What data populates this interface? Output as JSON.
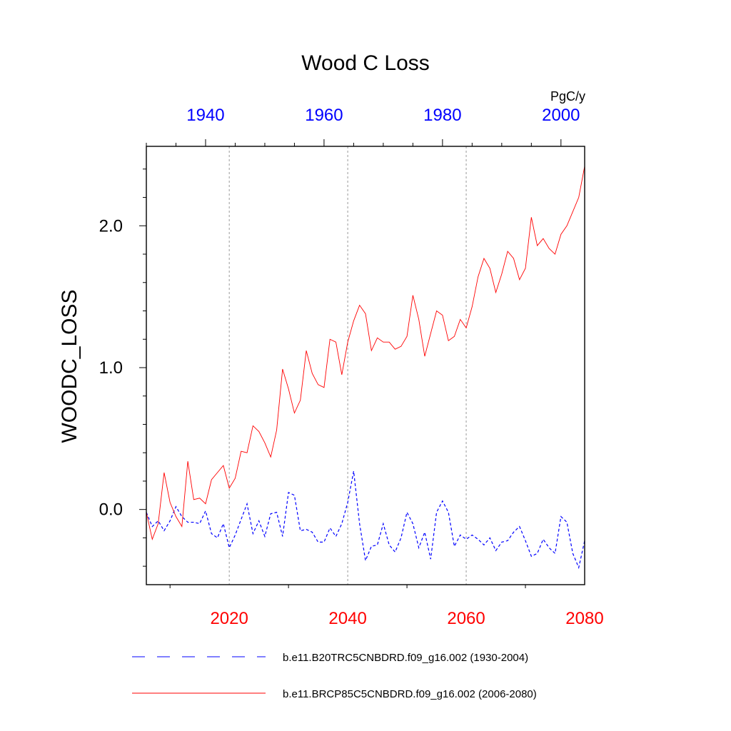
{
  "chart_data": {
    "type": "line",
    "title": "Wood C Loss",
    "ylabel": "WOODC_LOSS",
    "units": "PgC/y",
    "ylim": [
      -0.53,
      2.56
    ],
    "yticks": [
      0.0,
      1.0,
      2.0
    ],
    "ytick_labels": [
      "0.0",
      "1.0",
      "2.0"
    ],
    "bottom_axis": {
      "range": [
        2006,
        2080
      ],
      "ticks": [
        2020,
        2040,
        2060,
        2080
      ],
      "labels": [
        "2020",
        "2040",
        "2060",
        "2080"
      ],
      "color": "#ff0000"
    },
    "top_axis": {
      "range": [
        1930,
        2004
      ],
      "ticks": [
        1940,
        1960,
        1980,
        2000
      ],
      "labels": [
        "1940",
        "1960",
        "1980",
        "2000"
      ],
      "color": "#0000ff"
    },
    "grid_x": [
      2020,
      2040,
      2060
    ],
    "series": [
      {
        "name": "b.e11.B20TRC5CNBDRD.f09_g16.002 (1930-2004)",
        "axis": "top",
        "color": "#0000ff",
        "dashed": true,
        "x_start": 1930,
        "values": [
          -0.02,
          -0.12,
          -0.08,
          -0.15,
          -0.08,
          0.02,
          -0.05,
          -0.09,
          -0.09,
          -0.1,
          -0.01,
          -0.17,
          -0.2,
          -0.1,
          -0.27,
          -0.18,
          -0.07,
          0.04,
          -0.17,
          -0.08,
          -0.19,
          -0.03,
          -0.02,
          -0.19,
          0.12,
          0.1,
          -0.15,
          -0.14,
          -0.16,
          -0.23,
          -0.23,
          -0.13,
          -0.19,
          -0.1,
          0.05,
          0.27,
          -0.1,
          -0.36,
          -0.26,
          -0.25,
          -0.1,
          -0.25,
          -0.3,
          -0.2,
          -0.02,
          -0.1,
          -0.27,
          -0.16,
          -0.35,
          -0.02,
          0.06,
          -0.02,
          -0.26,
          -0.18,
          -0.21,
          -0.18,
          -0.21,
          -0.25,
          -0.2,
          -0.29,
          -0.23,
          -0.22,
          -0.16,
          -0.12,
          -0.22,
          -0.33,
          -0.31,
          -0.21,
          -0.27,
          -0.31,
          -0.05,
          -0.09,
          -0.31,
          -0.41,
          -0.22
        ]
      },
      {
        "name": "b.e11.BRCP85C5CNBDRD.f09_g16.002 (2006-2080)",
        "axis": "bottom",
        "color": "#ff0000",
        "dashed": false,
        "x_start": 2006,
        "values": [
          -0.02,
          -0.21,
          -0.1,
          0.26,
          0.05,
          -0.05,
          -0.12,
          0.34,
          0.07,
          0.08,
          0.04,
          0.21,
          0.26,
          0.31,
          0.15,
          0.22,
          0.41,
          0.4,
          0.59,
          0.55,
          0.47,
          0.37,
          0.56,
          0.99,
          0.85,
          0.68,
          0.77,
          1.12,
          0.96,
          0.88,
          0.86,
          1.2,
          1.18,
          0.95,
          1.18,
          1.33,
          1.44,
          1.38,
          1.12,
          1.21,
          1.18,
          1.18,
          1.13,
          1.15,
          1.22,
          1.51,
          1.34,
          1.08,
          1.24,
          1.4,
          1.37,
          1.19,
          1.22,
          1.34,
          1.28,
          1.43,
          1.64,
          1.77,
          1.7,
          1.53,
          1.66,
          1.82,
          1.77,
          1.62,
          1.7,
          2.06,
          1.86,
          1.91,
          1.84,
          1.8,
          1.94,
          2.0,
          2.1,
          2.2,
          2.42
        ]
      }
    ],
    "legend": [
      {
        "label": "b.e11.B20TRC5CNBDRD.f09_g16.002 (1930-2004)",
        "color": "#0000ff",
        "dashed": true
      },
      {
        "label": "b.e11.BRCP85C5CNBDRD.f09_g16.002 (2006-2080)",
        "color": "#ff0000",
        "dashed": false
      }
    ]
  }
}
